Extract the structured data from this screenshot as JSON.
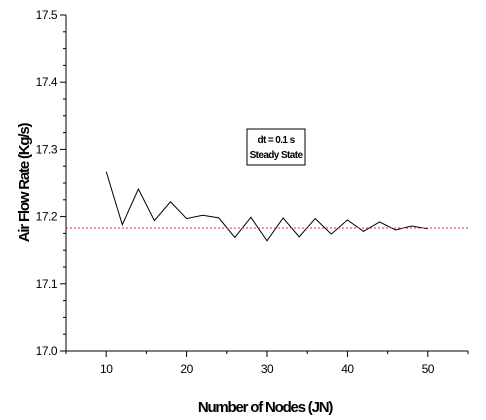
{
  "chart_data": {
    "type": "line",
    "xlabel": "Number of Nodes (JN)",
    "ylabel": "Air Flow Rate (Kg/s)",
    "xlim": [
      5,
      55
    ],
    "ylim": [
      17.0,
      17.5
    ],
    "x_ticks": [
      10,
      20,
      30,
      40,
      50
    ],
    "y_ticks": [
      "17.0",
      "17.1",
      "17.2",
      "17.3",
      "17.4",
      "17.5"
    ],
    "y_tick_values": [
      17.0,
      17.1,
      17.2,
      17.3,
      17.4,
      17.5
    ],
    "grid": false,
    "legend_position": "upper-center",
    "legend_lines": [
      "dt = 0.1 s",
      "Steady State"
    ],
    "series": [
      {
        "style": "solid",
        "color": "#000000",
        "x": [
          10,
          12,
          14,
          16,
          18,
          20,
          22,
          24,
          26,
          28,
          30,
          32,
          34,
          36,
          38,
          40,
          42,
          44,
          46,
          48,
          50
        ],
        "y": [
          17.267,
          17.188,
          17.241,
          17.194,
          17.222,
          17.197,
          17.202,
          17.198,
          17.169,
          17.199,
          17.164,
          17.198,
          17.17,
          17.197,
          17.174,
          17.195,
          17.178,
          17.192,
          17.18,
          17.186,
          17.182
        ]
      },
      {
        "style": "dotted",
        "color": "#e03030",
        "x": [
          5,
          55
        ],
        "y": [
          17.183,
          17.183
        ]
      }
    ]
  }
}
